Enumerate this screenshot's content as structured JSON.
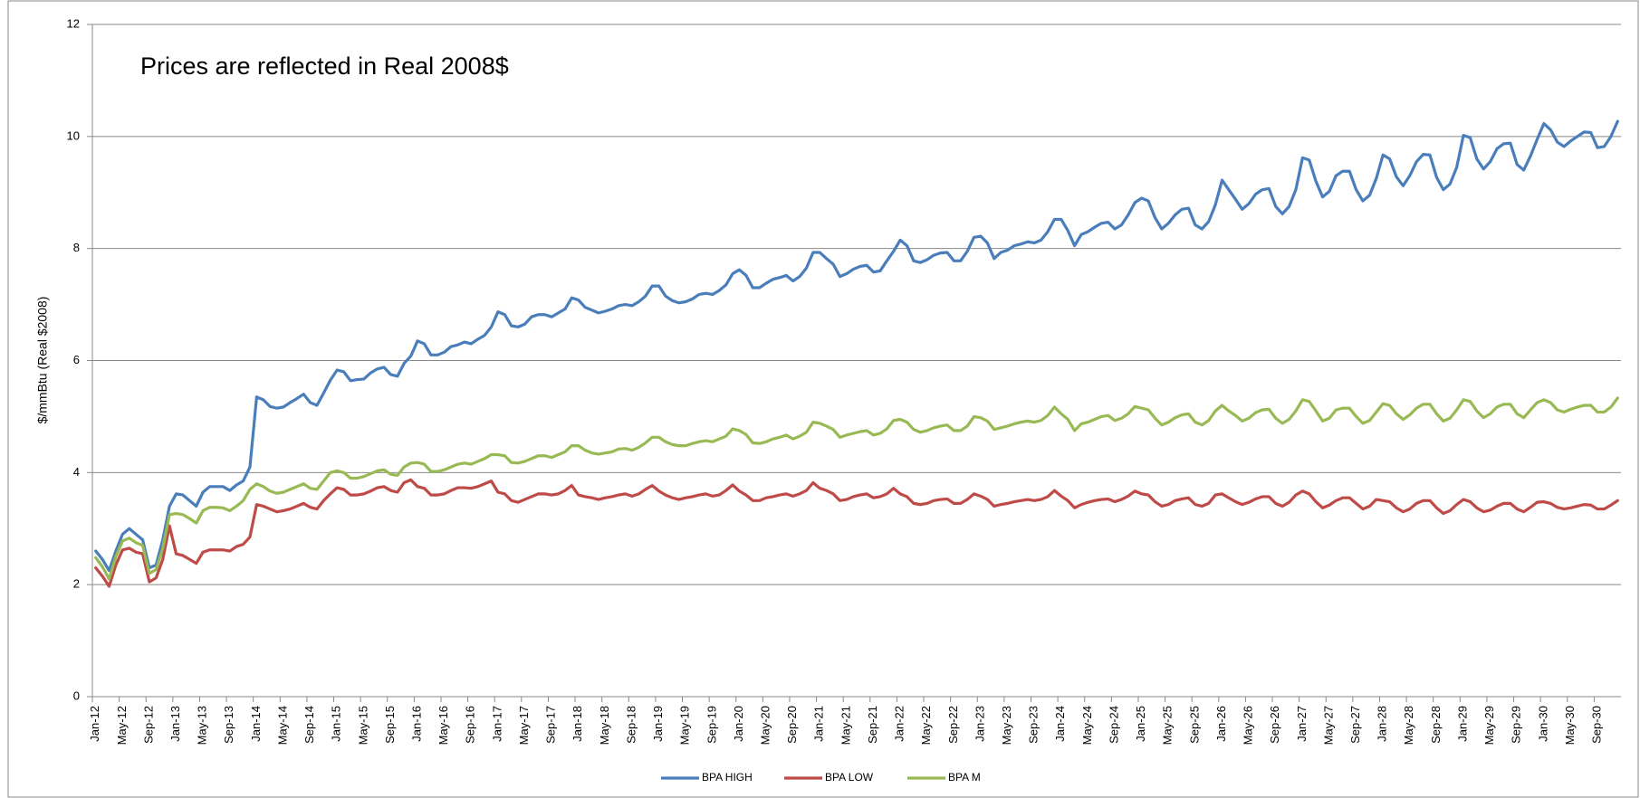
{
  "chart_data": {
    "type": "line",
    "annotation": "Prices are reflected in Real 2008$",
    "y_label": "$/mmBtu (Real $2008)",
    "categories": [
      "Jan-12",
      null,
      null,
      null,
      "May-12",
      null,
      null,
      null,
      "Sep-12",
      null,
      null,
      null,
      "Jan-13",
      null,
      null,
      null,
      "May-13",
      null,
      null,
      null,
      "Sep-13",
      null,
      null,
      null,
      "Jan-14",
      null,
      null,
      null,
      "May-14",
      null,
      null,
      null,
      "Sep-14",
      null,
      null,
      null,
      "Jan-15",
      null,
      null,
      null,
      "May-15",
      null,
      null,
      null,
      "Sep-15",
      null,
      null,
      null,
      "Jan-16",
      null,
      null,
      null,
      "May-16",
      null,
      null,
      null,
      "Sep-16",
      null,
      null,
      null,
      "Jan-17",
      null,
      null,
      null,
      "May-17",
      null,
      null,
      null,
      "Sep-17",
      null,
      null,
      null,
      "Jan-18",
      null,
      null,
      null,
      "May-18",
      null,
      null,
      null,
      "Sep-18",
      null,
      null,
      null,
      "Jan-19",
      null,
      null,
      null,
      "May-19",
      null,
      null,
      null,
      "Sep-19",
      null,
      null,
      null,
      "Jan-20",
      null,
      null,
      null,
      "May-20",
      null,
      null,
      null,
      "Sep-20",
      null,
      null,
      null,
      "Jan-21",
      null,
      null,
      null,
      "May-21",
      null,
      null,
      null,
      "Sep-21",
      null,
      null,
      null,
      "Jan-22",
      null,
      null,
      null,
      "May-22",
      null,
      null,
      null,
      "Sep-22",
      null,
      null,
      null,
      "Jan-23",
      null,
      null,
      null,
      "May-23",
      null,
      null,
      null,
      "Sep-23",
      null,
      null,
      null,
      "Jan-24",
      null,
      null,
      null,
      "May-24",
      null,
      null,
      null,
      "Sep-24",
      null,
      null,
      null,
      "Jan-25",
      null,
      null,
      null,
      "May-25",
      null,
      null,
      null,
      "Sep-25",
      null,
      null,
      null,
      "Jan-26",
      null,
      null,
      null,
      "May-26",
      null,
      null,
      null,
      "Sep-26",
      null,
      null,
      null,
      "Jan-27",
      null,
      null,
      null,
      "May-27",
      null,
      null,
      null,
      "Sep-27",
      null,
      null,
      null,
      "Jan-28",
      null,
      null,
      null,
      "May-28",
      null,
      null,
      null,
      "Sep-28",
      null,
      null,
      null,
      "Jan-29",
      null,
      null,
      null,
      "May-29",
      null,
      null,
      null,
      "Sep-29",
      null,
      null,
      null,
      "Jan-30",
      null,
      null,
      null,
      "May-30",
      null,
      null,
      null,
      "Sep-30",
      null,
      null,
      null
    ],
    "series": [
      {
        "name": "BPA HIGH",
        "color": "#4a7ebb",
        "values": [
          2.6,
          2.45,
          2.25,
          2.6,
          2.9,
          3.0,
          2.9,
          2.8,
          2.3,
          2.35,
          2.8,
          3.4,
          3.62,
          3.6,
          3.5,
          3.4,
          3.65,
          3.75,
          3.75,
          3.75,
          3.68,
          3.78,
          3.85,
          4.1,
          5.35,
          5.3,
          5.18,
          5.15,
          5.17,
          5.25,
          5.32,
          5.4,
          5.25,
          5.2,
          5.42,
          5.65,
          5.83,
          5.8,
          5.64,
          5.66,
          5.67,
          5.78,
          5.85,
          5.88,
          5.75,
          5.72,
          5.95,
          6.08,
          6.35,
          6.3,
          6.1,
          6.1,
          6.15,
          6.25,
          6.28,
          6.33,
          6.3,
          6.38,
          6.45,
          6.6,
          6.87,
          6.82,
          6.62,
          6.6,
          6.65,
          6.78,
          6.82,
          6.82,
          6.78,
          6.85,
          6.92,
          7.12,
          7.08,
          6.95,
          6.9,
          6.85,
          6.88,
          6.92,
          6.98,
          7.0,
          6.98,
          7.05,
          7.15,
          7.33,
          7.33,
          7.15,
          7.07,
          7.03,
          7.05,
          7.1,
          7.18,
          7.2,
          7.18,
          7.25,
          7.35,
          7.55,
          7.62,
          7.52,
          7.3,
          7.3,
          7.38,
          7.45,
          7.48,
          7.52,
          7.42,
          7.5,
          7.65,
          7.93,
          7.93,
          7.82,
          7.72,
          7.5,
          7.55,
          7.63,
          7.68,
          7.7,
          7.58,
          7.6,
          7.78,
          7.95,
          8.15,
          8.05,
          7.78,
          7.75,
          7.8,
          7.88,
          7.92,
          7.93,
          7.78,
          7.78,
          7.95,
          8.2,
          8.22,
          8.1,
          7.82,
          7.93,
          7.97,
          8.05,
          8.08,
          8.12,
          8.1,
          8.15,
          8.3,
          8.52,
          8.52,
          8.32,
          8.05,
          8.25,
          8.3,
          8.38,
          8.45,
          8.47,
          8.35,
          8.42,
          8.6,
          8.82,
          8.9,
          8.85,
          8.55,
          8.35,
          8.45,
          8.6,
          8.7,
          8.72,
          8.42,
          8.35,
          8.48,
          8.78,
          9.22,
          9.05,
          8.88,
          8.7,
          8.8,
          8.97,
          9.05,
          9.07,
          8.75,
          8.62,
          8.75,
          9.05,
          9.62,
          9.58,
          9.2,
          8.92,
          9.02,
          9.3,
          9.38,
          9.38,
          9.05,
          8.85,
          8.95,
          9.25,
          9.67,
          9.6,
          9.28,
          9.12,
          9.3,
          9.55,
          9.68,
          9.67,
          9.27,
          9.05,
          9.15,
          9.45,
          10.02,
          9.98,
          9.6,
          9.42,
          9.55,
          9.78,
          9.87,
          9.88,
          9.5,
          9.4,
          9.65,
          9.95,
          10.23,
          10.12,
          9.9,
          9.82,
          9.92,
          10.0,
          10.08,
          10.07,
          9.8,
          9.82,
          10.0,
          10.27
        ]
      },
      {
        "name": "BPA LOW",
        "color": "#be4b48",
        "values": [
          2.3,
          2.15,
          1.97,
          2.35,
          2.62,
          2.65,
          2.58,
          2.55,
          2.05,
          2.12,
          2.45,
          3.05,
          2.55,
          2.52,
          2.45,
          2.38,
          2.58,
          2.62,
          2.62,
          2.62,
          2.6,
          2.68,
          2.72,
          2.85,
          3.43,
          3.4,
          3.35,
          3.3,
          3.32,
          3.35,
          3.4,
          3.45,
          3.38,
          3.35,
          3.5,
          3.62,
          3.73,
          3.7,
          3.6,
          3.6,
          3.62,
          3.67,
          3.73,
          3.75,
          3.68,
          3.65,
          3.82,
          3.87,
          3.75,
          3.72,
          3.6,
          3.6,
          3.62,
          3.68,
          3.73,
          3.73,
          3.72,
          3.75,
          3.8,
          3.85,
          3.65,
          3.62,
          3.5,
          3.47,
          3.52,
          3.57,
          3.62,
          3.62,
          3.6,
          3.62,
          3.68,
          3.77,
          3.6,
          3.57,
          3.55,
          3.52,
          3.55,
          3.57,
          3.6,
          3.62,
          3.58,
          3.62,
          3.7,
          3.77,
          3.67,
          3.6,
          3.55,
          3.52,
          3.55,
          3.57,
          3.6,
          3.62,
          3.58,
          3.6,
          3.68,
          3.78,
          3.67,
          3.6,
          3.5,
          3.5,
          3.55,
          3.57,
          3.6,
          3.62,
          3.58,
          3.62,
          3.68,
          3.82,
          3.72,
          3.68,
          3.62,
          3.5,
          3.52,
          3.57,
          3.6,
          3.62,
          3.55,
          3.57,
          3.62,
          3.72,
          3.62,
          3.57,
          3.45,
          3.43,
          3.45,
          3.5,
          3.52,
          3.53,
          3.45,
          3.45,
          3.52,
          3.62,
          3.58,
          3.52,
          3.4,
          3.43,
          3.45,
          3.48,
          3.5,
          3.52,
          3.5,
          3.52,
          3.57,
          3.68,
          3.58,
          3.5,
          3.37,
          3.43,
          3.47,
          3.5,
          3.52,
          3.53,
          3.48,
          3.52,
          3.58,
          3.67,
          3.62,
          3.6,
          3.48,
          3.4,
          3.43,
          3.5,
          3.53,
          3.55,
          3.43,
          3.4,
          3.45,
          3.6,
          3.62,
          3.55,
          3.48,
          3.43,
          3.47,
          3.53,
          3.57,
          3.57,
          3.45,
          3.4,
          3.47,
          3.6,
          3.67,
          3.62,
          3.48,
          3.37,
          3.42,
          3.5,
          3.55,
          3.55,
          3.45,
          3.35,
          3.4,
          3.52,
          3.5,
          3.48,
          3.37,
          3.3,
          3.35,
          3.45,
          3.5,
          3.5,
          3.37,
          3.27,
          3.32,
          3.43,
          3.52,
          3.48,
          3.37,
          3.3,
          3.33,
          3.4,
          3.45,
          3.45,
          3.35,
          3.3,
          3.38,
          3.47,
          3.48,
          3.45,
          3.38,
          3.35,
          3.37,
          3.4,
          3.43,
          3.42,
          3.35,
          3.35,
          3.42,
          3.5
        ]
      },
      {
        "name": "BPA M",
        "color": "#98b954",
        "values": [
          2.48,
          2.32,
          2.1,
          2.5,
          2.78,
          2.83,
          2.75,
          2.7,
          2.2,
          2.27,
          2.65,
          3.25,
          3.27,
          3.25,
          3.18,
          3.1,
          3.32,
          3.38,
          3.38,
          3.37,
          3.32,
          3.4,
          3.5,
          3.7,
          3.8,
          3.75,
          3.67,
          3.63,
          3.65,
          3.7,
          3.75,
          3.8,
          3.72,
          3.7,
          3.85,
          4.0,
          4.03,
          4.0,
          3.9,
          3.9,
          3.93,
          3.98,
          4.03,
          4.05,
          3.97,
          3.95,
          4.1,
          4.17,
          4.18,
          4.15,
          4.02,
          4.02,
          4.05,
          4.1,
          4.15,
          4.17,
          4.15,
          4.2,
          4.25,
          4.32,
          4.32,
          4.3,
          4.18,
          4.17,
          4.2,
          4.25,
          4.3,
          4.3,
          4.27,
          4.32,
          4.37,
          4.48,
          4.48,
          4.4,
          4.35,
          4.33,
          4.35,
          4.37,
          4.42,
          4.43,
          4.4,
          4.45,
          4.53,
          4.63,
          4.63,
          4.55,
          4.5,
          4.48,
          4.48,
          4.52,
          4.55,
          4.57,
          4.55,
          4.6,
          4.65,
          4.78,
          4.75,
          4.68,
          4.53,
          4.52,
          4.55,
          4.6,
          4.63,
          4.67,
          4.6,
          4.65,
          4.72,
          4.9,
          4.88,
          4.83,
          4.77,
          4.63,
          4.67,
          4.7,
          4.73,
          4.75,
          4.67,
          4.7,
          4.78,
          4.93,
          4.95,
          4.9,
          4.77,
          4.72,
          4.75,
          4.8,
          4.83,
          4.85,
          4.75,
          4.75,
          4.83,
          5.0,
          4.98,
          4.92,
          4.77,
          4.8,
          4.83,
          4.87,
          4.9,
          4.92,
          4.9,
          4.93,
          5.02,
          5.17,
          5.05,
          4.95,
          4.75,
          4.87,
          4.9,
          4.95,
          5.0,
          5.02,
          4.93,
          4.97,
          5.05,
          5.18,
          5.15,
          5.12,
          4.97,
          4.85,
          4.9,
          4.98,
          5.03,
          5.05,
          4.9,
          4.85,
          4.93,
          5.1,
          5.2,
          5.1,
          5.02,
          4.92,
          4.97,
          5.07,
          5.12,
          5.13,
          4.97,
          4.88,
          4.95,
          5.1,
          5.3,
          5.27,
          5.1,
          4.92,
          4.97,
          5.12,
          5.15,
          5.15,
          5.0,
          4.88,
          4.93,
          5.08,
          5.23,
          5.2,
          5.05,
          4.95,
          5.03,
          5.15,
          5.22,
          5.22,
          5.05,
          4.92,
          4.97,
          5.12,
          5.3,
          5.27,
          5.1,
          4.98,
          5.05,
          5.17,
          5.22,
          5.22,
          5.05,
          4.98,
          5.12,
          5.25,
          5.3,
          5.25,
          5.12,
          5.08,
          5.13,
          5.17,
          5.2,
          5.2,
          5.08,
          5.08,
          5.17,
          5.33
        ]
      }
    ],
    "ylim": [
      0,
      12
    ],
    "yticks": [
      0,
      2,
      4,
      6,
      8,
      10,
      12
    ],
    "grid": true,
    "legend": "bottom"
  }
}
